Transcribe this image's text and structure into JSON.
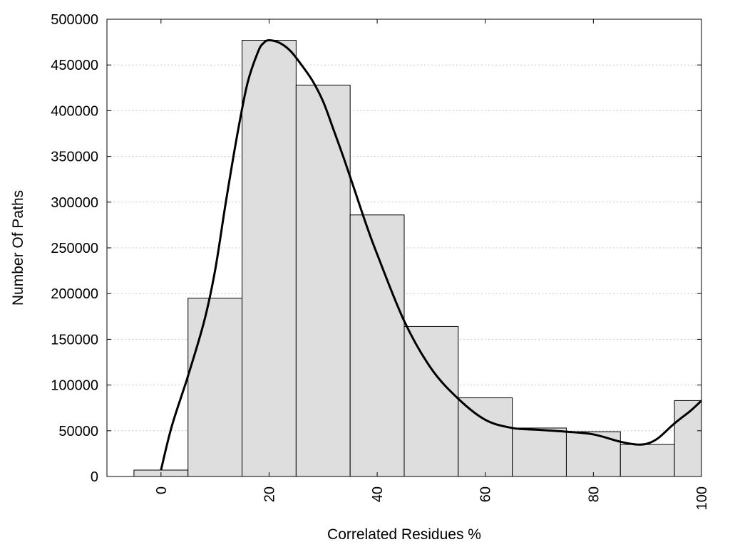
{
  "chart_data": {
    "type": "bar",
    "title": "",
    "xlabel": "Correlated Residues %",
    "ylabel": "Number Of Paths",
    "xlim": [
      -10,
      100
    ],
    "ylim": [
      0,
      500000
    ],
    "grid": "horizontal dotted",
    "legend": "none",
    "bin_width": 10,
    "x": [
      0,
      10,
      20,
      30,
      40,
      50,
      60,
      70,
      80,
      90,
      100
    ],
    "values": [
      7000,
      195000,
      477000,
      428000,
      286000,
      164000,
      86000,
      53000,
      49000,
      35000,
      83000
    ],
    "x_ticks": [
      0,
      20,
      40,
      60,
      80,
      100
    ],
    "x_tick_labels": [
      "0",
      "20",
      "40",
      "60",
      "80",
      "100"
    ],
    "y_ticks": [
      0,
      50000,
      100000,
      150000,
      200000,
      250000,
      300000,
      350000,
      400000,
      450000,
      500000
    ],
    "y_tick_labels": [
      "0",
      "50000",
      "100000",
      "150000",
      "200000",
      "250000",
      "300000",
      "350000",
      "400000",
      "450000",
      "500000"
    ],
    "curve": {
      "x": [
        0,
        2,
        5,
        8,
        10,
        12,
        14,
        16,
        18,
        19,
        20,
        22,
        24,
        26,
        28,
        30,
        32,
        34,
        36,
        38,
        40,
        45,
        50,
        55,
        60,
        65,
        70,
        75,
        80,
        85,
        88,
        90,
        92,
        95,
        98,
        100
      ],
      "y": [
        7000,
        55000,
        110000,
        170000,
        225000,
        300000,
        370000,
        430000,
        465000,
        474000,
        477000,
        474000,
        465000,
        450000,
        433000,
        410000,
        378000,
        345000,
        310000,
        275000,
        243000,
        170000,
        118000,
        85000,
        62000,
        53000,
        51000,
        49000,
        46000,
        38000,
        35000,
        36000,
        42000,
        58000,
        72000,
        83000
      ]
    },
    "colors": {
      "bar_fill": "#dedede",
      "bar_stroke": "#000000",
      "curve": "#000000",
      "grid": "#c8c8c8"
    }
  }
}
